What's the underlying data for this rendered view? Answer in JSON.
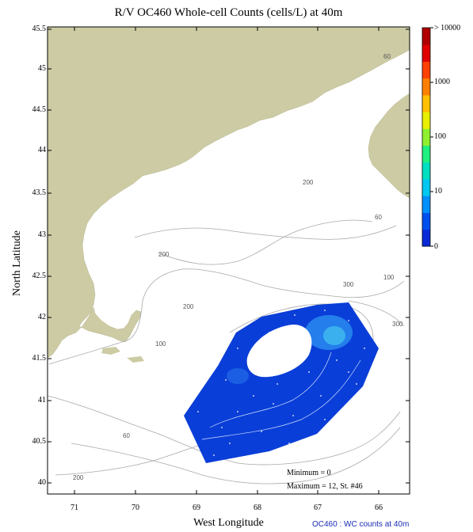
{
  "title": "R/V OC460 Whole-cell Counts (cells/L) at 40m",
  "xlabel": "West Longitude",
  "ylabel": "North Latitude",
  "x_ticks": [
    "71",
    "70",
    "69",
    "68",
    "67",
    "66"
  ],
  "y_ticks": [
    "45.5",
    "45",
    "44.5",
    "44",
    "43.5",
    "43",
    "42.5",
    "42",
    "41.5",
    "41",
    "40.5",
    "40"
  ],
  "contour_labels": [
    "60",
    "200",
    "60",
    "200",
    "300",
    "100",
    "200",
    "300",
    "60",
    "200",
    "300",
    "100",
    "60",
    "200"
  ],
  "stats": {
    "minimum": "Minimum = 0",
    "maximum": "Maximum = 12, St. #46"
  },
  "colorbar": {
    "labels": [
      "> 10000",
      "1000",
      "100",
      "10",
      "0"
    ],
    "colors": [
      "#0a2ad8",
      "#0050f0",
      "#0090ff",
      "#00c8f0",
      "#00e0c0",
      "#20f080",
      "#90f030",
      "#e8f000",
      "#ffc000",
      "#ff8000",
      "#ff4000",
      "#e00000",
      "#b00000"
    ]
  },
  "footer": "OC460 : WC counts at 40m",
  "colors": {
    "land": "#cdcba4",
    "depth_contour": "#a8a8a8",
    "low_count_fill": "#0a3ed8"
  }
}
